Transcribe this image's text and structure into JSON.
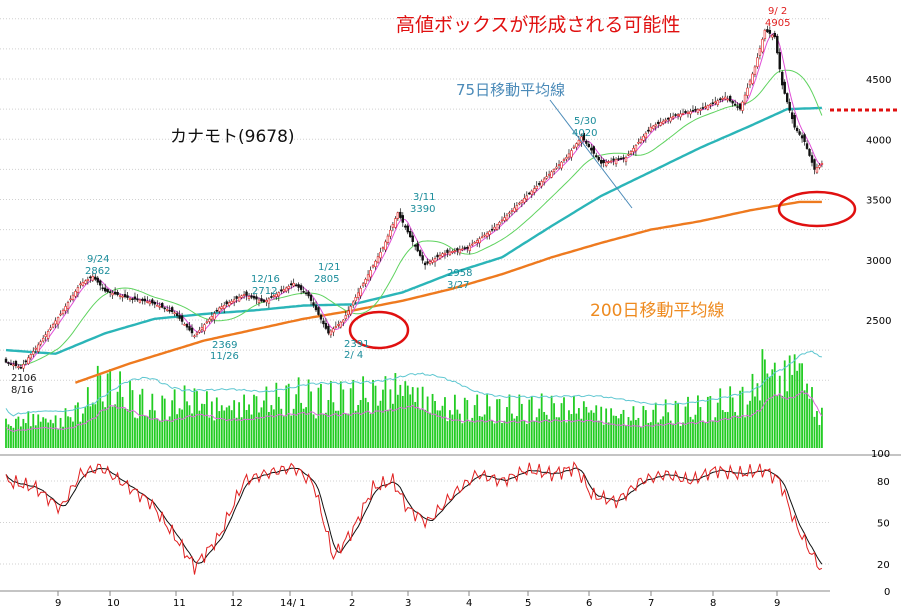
{
  "chart_data": {
    "type": "candlestick",
    "title": "カナモト(9678)",
    "headline": "高値ボックスが形成される可能性",
    "ma75_label": "75日移動平均線",
    "ma200_label": "200日移動平均線",
    "price_axis": {
      "ticks": [
        "4500",
        "4000",
        "3500",
        "3000",
        "2500"
      ],
      "ylim": [
        2000,
        5100
      ]
    },
    "volume_axis": {
      "ticks": [
        "100"
      ]
    },
    "oscillator_axis": {
      "ticks": [
        "80",
        "50",
        "20",
        "0"
      ],
      "ylim": [
        0,
        100
      ]
    },
    "x_labels": [
      "9",
      "10",
      "11",
      "12",
      "14/ 1",
      "2",
      "3",
      "4",
      "5",
      "6",
      "7",
      "8",
      "9"
    ],
    "annotations": [
      {
        "date": "8/16",
        "value": "2106"
      },
      {
        "date": "9/24",
        "value": "2862"
      },
      {
        "date": "11/26",
        "value": "2369"
      },
      {
        "date": "12/16",
        "value": "2712"
      },
      {
        "date": "1/21",
        "value": "2805"
      },
      {
        "date": "2/ 4",
        "value": "2391"
      },
      {
        "date": "3/11",
        "value": "3390"
      },
      {
        "date": "3/27",
        "value": "2958"
      },
      {
        "date": "5/30",
        "value": "4020"
      },
      {
        "date": "9/ 2",
        "value": "4905"
      }
    ],
    "price_anchors": [
      [
        0,
        2150
      ],
      [
        6,
        2106
      ],
      [
        14,
        2320
      ],
      [
        22,
        2550
      ],
      [
        30,
        2800
      ],
      [
        35,
        2862
      ],
      [
        40,
        2740
      ],
      [
        50,
        2680
      ],
      [
        58,
        2650
      ],
      [
        68,
        2560
      ],
      [
        76,
        2369
      ],
      [
        86,
        2600
      ],
      [
        96,
        2712
      ],
      [
        104,
        2650
      ],
      [
        116,
        2805
      ],
      [
        122,
        2700
      ],
      [
        130,
        2391
      ],
      [
        136,
        2500
      ],
      [
        144,
        2800
      ],
      [
        152,
        3100
      ],
      [
        158,
        3390
      ],
      [
        164,
        3150
      ],
      [
        169,
        2958
      ],
      [
        176,
        3050
      ],
      [
        186,
        3100
      ],
      [
        196,
        3250
      ],
      [
        206,
        3450
      ],
      [
        216,
        3650
      ],
      [
        226,
        3850
      ],
      [
        232,
        4020
      ],
      [
        240,
        3800
      ],
      [
        250,
        3850
      ],
      [
        260,
        4100
      ],
      [
        270,
        4200
      ],
      [
        280,
        4250
      ],
      [
        290,
        4350
      ],
      [
        296,
        4250
      ],
      [
        302,
        4600
      ],
      [
        306,
        4905
      ],
      [
        310,
        4850
      ],
      [
        313,
        4450
      ],
      [
        318,
        4100
      ],
      [
        322,
        3980
      ],
      [
        326,
        3750
      ],
      [
        329,
        3800
      ]
    ],
    "ma75_anchors": [
      [
        0,
        2250
      ],
      [
        20,
        2220
      ],
      [
        40,
        2390
      ],
      [
        60,
        2510
      ],
      [
        80,
        2550
      ],
      [
        100,
        2580
      ],
      [
        120,
        2620
      ],
      [
        140,
        2630
      ],
      [
        160,
        2730
      ],
      [
        180,
        2890
      ],
      [
        200,
        3020
      ],
      [
        220,
        3280
      ],
      [
        240,
        3530
      ],
      [
        260,
        3730
      ],
      [
        280,
        3930
      ],
      [
        300,
        4110
      ],
      [
        315,
        4250
      ],
      [
        329,
        4260
      ]
    ],
    "ma200_anchors": [
      [
        28,
        1980
      ],
      [
        50,
        2140
      ],
      [
        80,
        2330
      ],
      [
        100,
        2420
      ],
      [
        120,
        2510
      ],
      [
        140,
        2580
      ],
      [
        160,
        2660
      ],
      [
        180,
        2760
      ],
      [
        200,
        2880
      ],
      [
        220,
        3020
      ],
      [
        240,
        3140
      ],
      [
        260,
        3250
      ],
      [
        280,
        3320
      ],
      [
        300,
        3410
      ],
      [
        320,
        3480
      ],
      [
        329,
        3480
      ]
    ],
    "volume_anchors": [
      [
        0,
        25
      ],
      [
        10,
        35
      ],
      [
        20,
        30
      ],
      [
        32,
        45
      ],
      [
        38,
        70
      ],
      [
        48,
        55
      ],
      [
        60,
        40
      ],
      [
        76,
        55
      ],
      [
        88,
        45
      ],
      [
        100,
        50
      ],
      [
        116,
        55
      ],
      [
        130,
        50
      ],
      [
        150,
        60
      ],
      [
        160,
        70
      ],
      [
        176,
        45
      ],
      [
        200,
        40
      ],
      [
        232,
        45
      ],
      [
        250,
        35
      ],
      [
        280,
        40
      ],
      [
        300,
        55
      ],
      [
        306,
        95
      ],
      [
        312,
        75
      ],
      [
        318,
        100
      ],
      [
        322,
        80
      ],
      [
        326,
        45
      ],
      [
        329,
        35
      ]
    ],
    "osc_anchors": [
      [
        0,
        80
      ],
      [
        12,
        75
      ],
      [
        22,
        60
      ],
      [
        30,
        85
      ],
      [
        38,
        90
      ],
      [
        46,
        80
      ],
      [
        58,
        65
      ],
      [
        68,
        40
      ],
      [
        76,
        18
      ],
      [
        86,
        40
      ],
      [
        96,
        80
      ],
      [
        104,
        85
      ],
      [
        116,
        90
      ],
      [
        124,
        78
      ],
      [
        132,
        25
      ],
      [
        140,
        45
      ],
      [
        148,
        75
      ],
      [
        156,
        80
      ],
      [
        162,
        60
      ],
      [
        170,
        50
      ],
      [
        180,
        70
      ],
      [
        190,
        85
      ],
      [
        200,
        80
      ],
      [
        210,
        88
      ],
      [
        220,
        85
      ],
      [
        230,
        90
      ],
      [
        236,
        70
      ],
      [
        246,
        65
      ],
      [
        256,
        80
      ],
      [
        266,
        85
      ],
      [
        276,
        80
      ],
      [
        286,
        88
      ],
      [
        296,
        85
      ],
      [
        306,
        88
      ],
      [
        312,
        80
      ],
      [
        318,
        50
      ],
      [
        324,
        30
      ],
      [
        329,
        15
      ]
    ]
  }
}
